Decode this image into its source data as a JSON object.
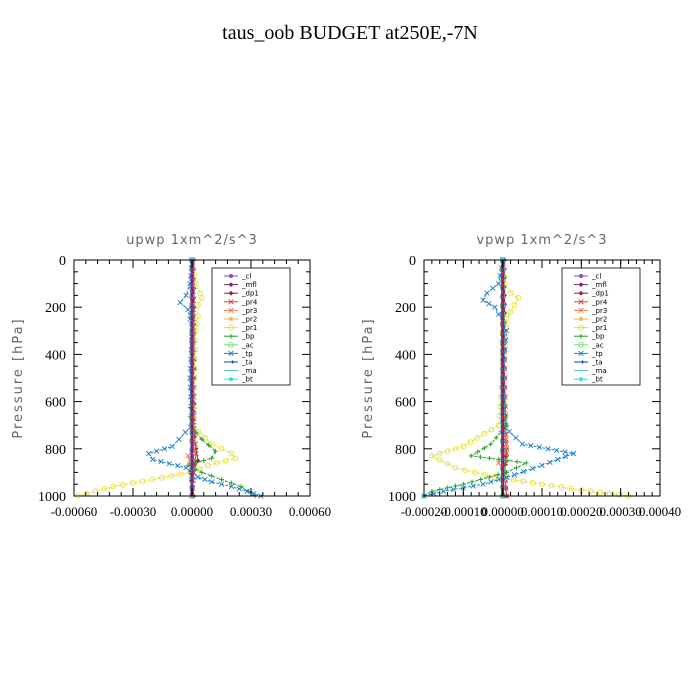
{
  "page_title": "taus_oob  BUDGET at250E,-7N",
  "chart_data": [
    {
      "type": "line",
      "title": "upwp   1xm^2/s^3",
      "ylabel": "Pressure [hPa]",
      "xlabel": "",
      "xlim": [
        -0.0006,
        0.0006
      ],
      "ylim": [
        1000,
        0
      ],
      "x_ticks": [
        -0.0006,
        -0.0003,
        0.0,
        0.0003,
        0.0006
      ],
      "x_tick_labels": [
        "-0.00060",
        "-0.00030",
        "0.00000",
        "0.00030",
        "0.00060"
      ],
      "y_ticks": [
        0,
        200,
        400,
        600,
        800,
        1000
      ],
      "y_tick_labels": [
        "0",
        "200",
        "400",
        "600",
        "800",
        "1000"
      ],
      "legend_position": "top-right",
      "series": [
        {
          "name": "_cl",
          "color": "#7d4fc2",
          "points": [
            [
              0,
              0
            ],
            [
              0,
              100
            ],
            [
              0,
              200
            ],
            [
              0,
              300
            ],
            [
              0,
              400
            ],
            [
              0,
              500
            ],
            [
              0,
              600
            ],
            [
              0,
              700
            ],
            [
              0,
              800
            ],
            [
              0,
              900
            ],
            [
              0,
              1000
            ]
          ]
        },
        {
          "name": "_mfl",
          "color": "#7a1f7a",
          "points": [
            [
              0,
              0
            ],
            [
              0,
              200
            ],
            [
              0,
              400
            ],
            [
              0,
              600
            ],
            [
              0,
              800
            ],
            [
              0,
              1000
            ]
          ]
        },
        {
          "name": "_dp1",
          "color": "#a01845",
          "points": [
            [
              1e-05,
              0
            ],
            [
              1e-05,
              200
            ],
            [
              1e-05,
              500
            ],
            [
              1e-05,
              750
            ],
            [
              2e-05,
              800
            ],
            [
              3e-05,
              850
            ],
            [
              -1e-05,
              900
            ],
            [
              1e-05,
              1000
            ]
          ]
        },
        {
          "name": "_pr4",
          "color": "#d04040",
          "points": [
            [
              0,
              0
            ],
            [
              1e-05,
              300
            ],
            [
              1e-05,
              700
            ],
            [
              2e-05,
              820
            ],
            [
              1e-05,
              900
            ],
            [
              0,
              1000
            ]
          ]
        },
        {
          "name": "_pr3",
          "color": "#f07a50",
          "points": [
            [
              0,
              0
            ],
            [
              0,
              500
            ],
            [
              1e-05,
              800
            ],
            [
              -2e-05,
              830
            ],
            [
              0,
              900
            ],
            [
              0,
              1000
            ]
          ]
        },
        {
          "name": "_pr2",
          "color": "#f0b030",
          "points": [
            [
              0,
              0
            ],
            [
              0,
              500
            ],
            [
              0,
              800
            ],
            [
              0,
              1000
            ]
          ]
        },
        {
          "name": "_pr1",
          "color": "#e8e030",
          "points": [
            [
              0,
              0
            ],
            [
              2e-05,
              100
            ],
            [
              4e-05,
              140
            ],
            [
              5e-05,
              160
            ],
            [
              3e-05,
              190
            ],
            [
              3e-05,
              240
            ],
            [
              2e-05,
              300
            ],
            [
              1e-05,
              500
            ],
            [
              0,
              700
            ],
            [
              0.0001,
              780
            ],
            [
              0.0002,
              820
            ],
            [
              0.00022,
              840
            ],
            [
              8e-05,
              870
            ],
            [
              -1e-05,
              900
            ],
            [
              -0.0002,
              930
            ],
            [
              -0.0004,
              960
            ],
            [
              -0.00058,
              1000
            ]
          ]
        },
        {
          "name": "_bp",
          "color": "#20a020",
          "points": [
            [
              0,
              0
            ],
            [
              0,
              200
            ],
            [
              0,
              400
            ],
            [
              -1e-05,
              700
            ],
            [
              5e-05,
              760
            ],
            [
              0.00012,
              810
            ],
            [
              0.0001,
              840
            ],
            [
              -2e-05,
              870
            ],
            [
              5e-05,
              900
            ],
            [
              0.00015,
              930
            ],
            [
              0.00025,
              960
            ],
            [
              0.00032,
              1000
            ]
          ]
        },
        {
          "name": "_ac",
          "color": "#70e070",
          "points": [
            [
              0,
              0
            ],
            [
              0,
              500
            ],
            [
              0,
              1000
            ]
          ]
        },
        {
          "name": "_tp",
          "color": "#2080c8",
          "points": [
            [
              0,
              0
            ],
            [
              -1e-05,
              100
            ],
            [
              -3e-05,
              150
            ],
            [
              -6e-05,
              180
            ],
            [
              -2e-05,
              210
            ],
            [
              -1e-05,
              250
            ],
            [
              0,
              300
            ],
            [
              -1e-05,
              500
            ],
            [
              0,
              700
            ],
            [
              -0.0001,
              790
            ],
            [
              -0.00022,
              820
            ],
            [
              -0.0002,
              845
            ],
            [
              -3e-05,
              880
            ],
            [
              3e-05,
              920
            ],
            [
              0.0001,
              940
            ],
            [
              0.0002,
              960
            ],
            [
              0.00028,
              980
            ],
            [
              0.00035,
              1000
            ]
          ]
        },
        {
          "name": "_ta",
          "color": "#1040a0",
          "points": [
            [
              0,
              0
            ],
            [
              0,
              500
            ],
            [
              0,
              1000
            ]
          ]
        },
        {
          "name": "_ma",
          "color": "#50c0d0",
          "points": [
            [
              0,
              0
            ],
            [
              0,
              500
            ],
            [
              0,
              1000
            ]
          ]
        },
        {
          "name": "_bt",
          "color": "#30e0e0",
          "points": [
            [
              0,
              0
            ],
            [
              0,
              500
            ],
            [
              0,
              1000
            ]
          ]
        }
      ]
    },
    {
      "type": "line",
      "title": "vpwp   1xm^2/s^3",
      "ylabel": "Pressure [hPa]",
      "xlabel": "",
      "xlim": [
        -0.0002,
        0.0004
      ],
      "ylim": [
        1000,
        0
      ],
      "x_ticks": [
        -0.0002,
        -0.0001,
        0.0,
        0.0001,
        0.0002,
        0.0003,
        0.0004
      ],
      "x_tick_labels": [
        "-0.00020",
        "-0.00010",
        "0.00000",
        "0.00010",
        "0.00020",
        "0.00030",
        "0.00040"
      ],
      "y_ticks": [
        0,
        200,
        400,
        600,
        800,
        1000
      ],
      "y_tick_labels": [
        "0",
        "200",
        "400",
        "600",
        "800",
        "1000"
      ],
      "legend_position": "top-right",
      "series": [
        {
          "name": "_cl",
          "color": "#7d4fc2",
          "points": [
            [
              0,
              0
            ],
            [
              0,
              200
            ],
            [
              0,
              400
            ],
            [
              0,
              600
            ],
            [
              0,
              800
            ],
            [
              0,
              1000
            ]
          ]
        },
        {
          "name": "_mfl",
          "color": "#7a1f7a",
          "points": [
            [
              0,
              0
            ],
            [
              0,
              200
            ],
            [
              0,
              400
            ],
            [
              0,
              600
            ],
            [
              0,
              800
            ],
            [
              0,
              1000
            ]
          ]
        },
        {
          "name": "_dp1",
          "color": "#a01845",
          "points": [
            [
              5e-06,
              0
            ],
            [
              5e-06,
              300
            ],
            [
              5e-06,
              700
            ],
            [
              1e-05,
              800
            ],
            [
              5e-06,
              900
            ],
            [
              1e-05,
              1000
            ]
          ]
        },
        {
          "name": "_pr4",
          "color": "#d04040",
          "points": [
            [
              0,
              0
            ],
            [
              5e-06,
              500
            ],
            [
              1e-05,
              820
            ],
            [
              5e-06,
              900
            ],
            [
              1e-05,
              1000
            ]
          ]
        },
        {
          "name": "_pr3",
          "color": "#f07a50",
          "points": [
            [
              0,
              0
            ],
            [
              0,
              500
            ],
            [
              1e-05,
              800
            ],
            [
              -1e-05,
              860
            ],
            [
              5e-06,
              900
            ],
            [
              0,
              1000
            ]
          ]
        },
        {
          "name": "_pr2",
          "color": "#f0b030",
          "points": [
            [
              0,
              0
            ],
            [
              0,
              500
            ],
            [
              0,
              1000
            ]
          ]
        },
        {
          "name": "_pr1",
          "color": "#e8e030",
          "points": [
            [
              0,
              0
            ],
            [
              5e-06,
              100
            ],
            [
              2e-05,
              140
            ],
            [
              4e-05,
              160
            ],
            [
              3e-05,
              190
            ],
            [
              1e-05,
              250
            ],
            [
              0,
              500
            ],
            [
              -1e-05,
              700
            ],
            [
              -0.0001,
              790
            ],
            [
              -0.00018,
              830
            ],
            [
              -0.00012,
              880
            ],
            [
              -2e-05,
              920
            ],
            [
              0.0001,
              950
            ],
            [
              0.0002,
              975
            ],
            [
              0.00032,
              1000
            ]
          ]
        },
        {
          "name": "_bp",
          "color": "#20a020",
          "points": [
            [
              0,
              0
            ],
            [
              0,
              200
            ],
            [
              0,
              500
            ],
            [
              1e-05,
              700
            ],
            [
              -3e-05,
              780
            ],
            [
              -8e-05,
              830
            ],
            [
              6e-05,
              860
            ],
            [
              1e-05,
              900
            ],
            [
              -0.0001,
              950
            ],
            [
              -0.00018,
              980
            ],
            [
              -0.0002,
              1000
            ]
          ]
        },
        {
          "name": "_ac",
          "color": "#70e070",
          "points": [
            [
              0,
              0
            ],
            [
              0,
              500
            ],
            [
              0,
              1000
            ]
          ]
        },
        {
          "name": "_tp",
          "color": "#2080c8",
          "points": [
            [
              0,
              0
            ],
            [
              -1e-05,
              100
            ],
            [
              -4e-05,
              140
            ],
            [
              -5e-05,
              170
            ],
            [
              -2e-05,
              200
            ],
            [
              0,
              260
            ],
            [
              1e-05,
              300
            ],
            [
              0,
              500
            ],
            [
              0,
              700
            ],
            [
              5e-05,
              780
            ],
            [
              0.00018,
              820
            ],
            [
              0.0001,
              870
            ],
            [
              3e-05,
              910
            ],
            [
              -5e-05,
              950
            ],
            [
              -0.00015,
              980
            ],
            [
              -0.0002,
              1000
            ]
          ]
        },
        {
          "name": "_ta",
          "color": "#1040a0",
          "points": [
            [
              0,
              0
            ],
            [
              0,
              500
            ],
            [
              0,
              1000
            ]
          ]
        },
        {
          "name": "_ma",
          "color": "#50c0d0",
          "points": [
            [
              0,
              0
            ],
            [
              0,
              500
            ],
            [
              0,
              1000
            ]
          ]
        },
        {
          "name": "_bt",
          "color": "#30e0e0",
          "points": [
            [
              0,
              0
            ],
            [
              0,
              500
            ],
            [
              0,
              1000
            ]
          ]
        }
      ]
    }
  ]
}
